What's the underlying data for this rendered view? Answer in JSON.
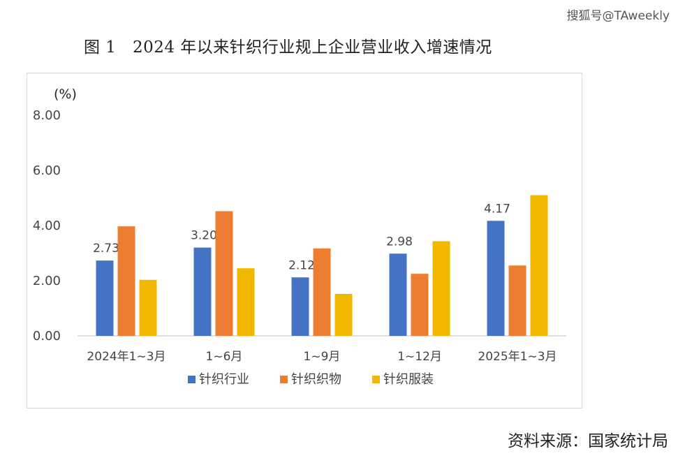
{
  "watermark": "搜狐号@TAweekly",
  "figure_title": "图 1　2024 年以来针织行业规上企业营业收入增速情况",
  "source": "资料来源：国家统计局",
  "chart_data": {
    "type": "bar",
    "title": "",
    "ylabel": "(%)",
    "ylim": [
      0,
      8
    ],
    "yticks": [
      "0.00",
      "2.00",
      "4.00",
      "6.00",
      "8.00"
    ],
    "grid": false,
    "legend_position": "bottom",
    "categories": [
      "2024年1~3月",
      "1~6月",
      "1~9月",
      "1~12月",
      "2025年1~3月"
    ],
    "series": [
      {
        "name": "针织行业",
        "color": "#4472C4",
        "values": [
          2.73,
          3.2,
          2.12,
          2.98,
          4.17
        ],
        "labels": [
          "2.73",
          "3.20",
          "2.12",
          "2.98",
          "4.17"
        ]
      },
      {
        "name": "针织织物",
        "color": "#ED7D31",
        "values": [
          3.97,
          4.52,
          3.17,
          2.25,
          2.55
        ],
        "labels": []
      },
      {
        "name": "针织服装",
        "color": "#F2B800",
        "values": [
          2.03,
          2.45,
          1.52,
          3.43,
          5.1
        ],
        "labels": []
      }
    ]
  }
}
